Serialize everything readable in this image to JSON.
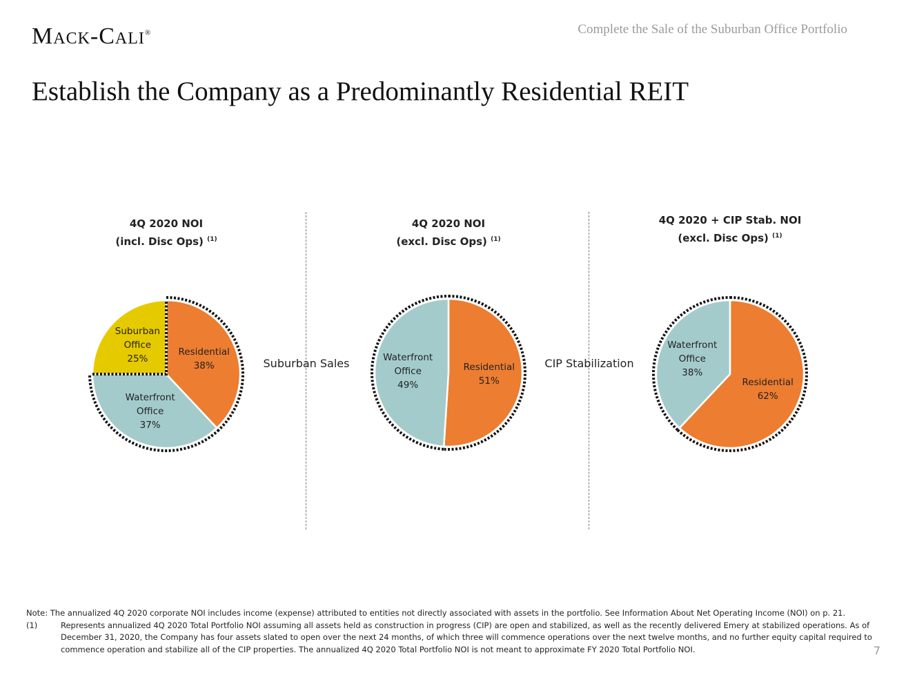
{
  "header": {
    "logo": "Mack-Cali",
    "section": "Complete the Sale of the Suburban Office Portfolio",
    "title": "Establish the Company as a Predominantly Residential REIT"
  },
  "colors": {
    "residential": "#ED7D31",
    "waterfront": "#A4CBCB",
    "suburban": "#E6CA00"
  },
  "chart_data": [
    {
      "type": "pie",
      "title": "4Q 2020 NOI",
      "subtitle": "(incl. Disc Ops)",
      "note": "(1)",
      "slices": [
        {
          "label": "Residential",
          "value": 38,
          "text": "38%"
        },
        {
          "label": "Waterfront Office",
          "value": 37,
          "text": "37%"
        },
        {
          "label": "Suburban Office",
          "value": 25,
          "text": "25%"
        }
      ]
    },
    {
      "type": "pie",
      "title": "4Q 2020 NOI",
      "subtitle": "(excl. Disc Ops)",
      "note": "(1)",
      "slices": [
        {
          "label": "Residential",
          "value": 51,
          "text": "51%"
        },
        {
          "label": "Waterfront Office",
          "value": 49,
          "text": "49%"
        }
      ]
    },
    {
      "type": "pie",
      "title": "4Q 2020 + CIP Stab. NOI",
      "subtitle": "(excl. Disc Ops)",
      "note": "(1)",
      "slices": [
        {
          "label": "Residential",
          "value": 62,
          "text": "62%"
        },
        {
          "label": "Waterfront Office",
          "value": 38,
          "text": "38%"
        }
      ]
    }
  ],
  "transitions": [
    "Suburban Sales",
    "CIP Stabilization"
  ],
  "notes": {
    "note": "Note: The annualized 4Q 2020 corporate NOI includes income (expense) attributed to entities not directly associated with assets in the portfolio. See Information About Net Operating Income (NOI) on p. 21.",
    "fn_mark": "(1)",
    "fn_text": "Represents annualized 4Q 2020 Total Portfolio NOI assuming all assets held as construction in progress (CIP) are open and stabilized, as well as the recently delivered Emery at stabilized operations.  As of December 31, 2020, the Company has four assets slated to open over the next 24 months, of which three will commence operations over the next twelve months, and no further equity capital required to commence operation and stabilize all of the CIP properties. The annualized 4Q 2020 Total Portfolio NOI is not meant to approximate FY 2020 Total Portfolio NOI."
  },
  "page_number": "7"
}
